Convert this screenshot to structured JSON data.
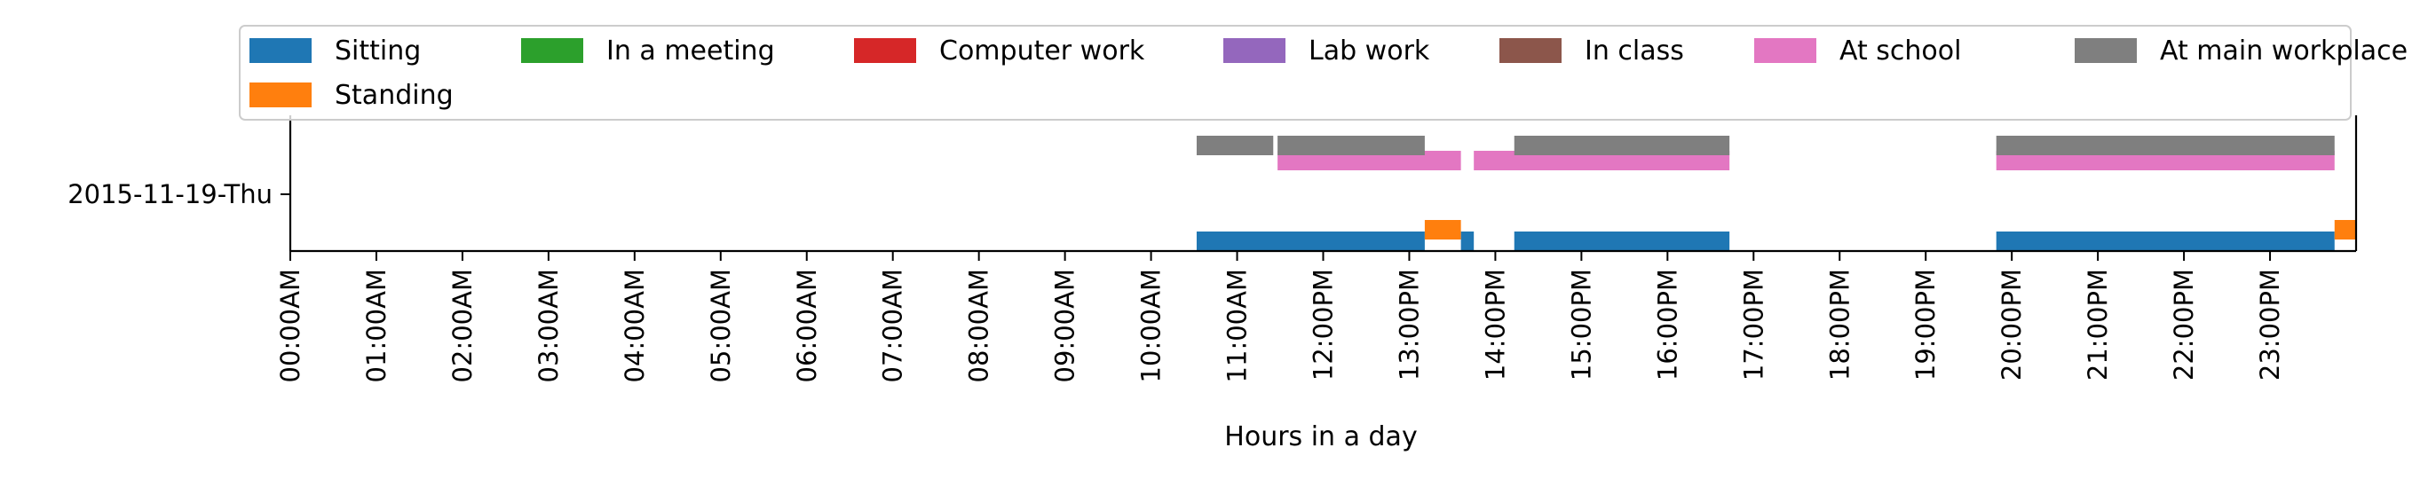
{
  "chart_data": {
    "type": "timeline",
    "title": "",
    "xlabel": "Hours in a day",
    "ylabel": "",
    "xlim_hours": [
      0,
      24
    ],
    "y_category": "2015-11-19-Thu",
    "x_ticks": [
      "00:00AM",
      "01:00AM",
      "02:00AM",
      "03:00AM",
      "04:00AM",
      "05:00AM",
      "06:00AM",
      "07:00AM",
      "08:00AM",
      "09:00AM",
      "10:00AM",
      "11:00AM",
      "12:00PM",
      "13:00PM",
      "14:00PM",
      "15:00PM",
      "16:00PM",
      "17:00PM",
      "18:00PM",
      "19:00PM",
      "20:00PM",
      "21:00PM",
      "22:00PM",
      "23:00PM"
    ],
    "legend": {
      "position": "top",
      "entries": [
        {
          "name": "Sitting",
          "color": "#1f77b4"
        },
        {
          "name": "In a meeting",
          "color": "#2ca02c"
        },
        {
          "name": "Computer work",
          "color": "#d62728"
        },
        {
          "name": "Lab work",
          "color": "#9467bd"
        },
        {
          "name": "In class",
          "color": "#8c564b"
        },
        {
          "name": "At school",
          "color": "#e377c2"
        },
        {
          "name": "At main workplace",
          "color": "#7f7f7f"
        },
        {
          "name": "Standing",
          "color": "#ff7f0e"
        }
      ]
    },
    "series": [
      {
        "name": "Sitting",
        "color": "#1f77b4",
        "lane": 0,
        "intervals": [
          [
            10.53,
            13.18
          ],
          [
            13.6,
            13.75
          ],
          [
            14.22,
            16.72
          ],
          [
            19.82,
            23.75
          ]
        ]
      },
      {
        "name": "Standing",
        "color": "#ff7f0e",
        "lane": 1,
        "intervals": [
          [
            13.18,
            13.6
          ],
          [
            23.75,
            24.0
          ]
        ]
      },
      {
        "name": "At school",
        "color": "#e377c2",
        "lane": 2,
        "intervals": [
          [
            11.47,
            13.6
          ],
          [
            13.75,
            16.72
          ],
          [
            19.82,
            23.75
          ]
        ]
      },
      {
        "name": "At main workplace",
        "color": "#7f7f7f",
        "lane": 3,
        "intervals": [
          [
            10.53,
            11.42
          ],
          [
            11.47,
            13.18
          ],
          [
            14.22,
            16.72
          ],
          [
            19.82,
            23.75
          ]
        ]
      }
    ]
  }
}
